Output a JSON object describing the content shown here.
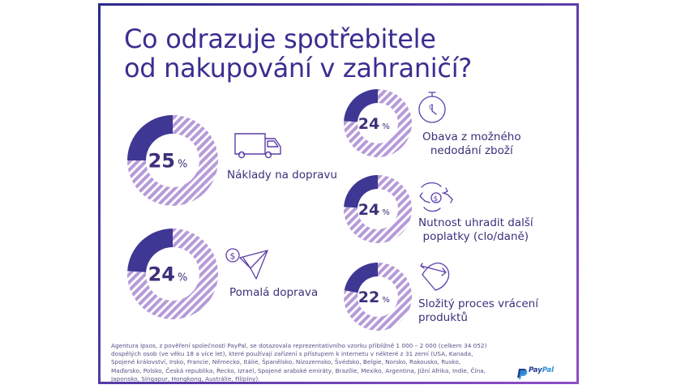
{
  "title": {
    "line1": "Co odrazuje spotřebitele",
    "line2": "od nakupování v zahraničí?"
  },
  "colors": {
    "primary": "#3a2e90",
    "donut_dark": "#3f3794",
    "donut_stripe_a": "#b69ad8",
    "donut_stripe_b": "#ffffff",
    "donut_bg": "#d9c9ef",
    "frame_start": "#2b2a8c",
    "frame_end": "#8e4ec6"
  },
  "chart_data": {
    "type": "pie",
    "title": "Co odrazuje spotřebitele od nakupování v zahraničí?",
    "unit": "%",
    "categories": [
      "Náklady na dopravu",
      "Pomalá doprava",
      "Obava z možného nedodání zboží",
      "Nutnost uhradit další poplatky (clo/daně)",
      "Složitý proces vrácení produktů"
    ],
    "values": [
      25,
      24,
      24,
      24,
      22
    ],
    "icons": [
      "truck-icon",
      "paper-plane-icon",
      "stopwatch-icon",
      "money-hands-icon",
      "bow-arrow-icon"
    ]
  },
  "items": [
    {
      "value": "25",
      "unit": "%",
      "label_lines": [
        "Náklady na dopravu"
      ]
    },
    {
      "value": "24",
      "unit": "%",
      "label_lines": [
        "Pomalá doprava"
      ]
    },
    {
      "value": "24",
      "unit": "%",
      "label_lines": [
        "Obava z možného",
        "nedodání zboží"
      ]
    },
    {
      "value": "24",
      "unit": "%",
      "label_lines": [
        "Nutnost uhradit další",
        "poplatky (clo/daně)"
      ]
    },
    {
      "value": "22",
      "unit": "%",
      "label_lines": [
        "Složitý proces vrácení",
        "produktů"
      ]
    }
  ],
  "footnote": "Agentura Ipsos, z pověření společnosti PayPal, se dotazovala reprezentativního vzorku přibližně 1 000 – 2 000 (celkem 34 052) dospělých osob (ve věku 18 a více let), které používají zařízení s přístupem k internetu v některé z 31 zemí (USA, Kanada, Spojené království, Irsko, Francie, Německo, Itálie, Španělsko, Nizozemsko, Švédsko, Belgie, Norsko, Rakousko, Rusko, Maďarsko, Polsko, Česká republika, Řecko, Izrael, Spojené arabské emiráty, Brazílie, Mexiko, Argentina, Jižní Afrika, Indie, Čína, Japonsko, Singapur, Hongkong, Austrálie, Filipíny).",
  "brand": {
    "part1": "Pay",
    "part2": "Pal"
  }
}
